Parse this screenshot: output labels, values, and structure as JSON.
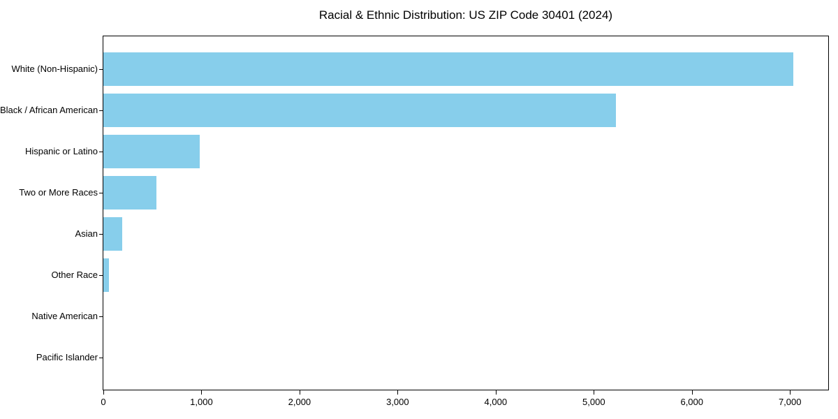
{
  "chart_data": {
    "type": "bar",
    "orientation": "horizontal",
    "title": "Racial & Ethnic Distribution: US ZIP Code 30401 (2024)",
    "categories": [
      "White (Non-Hispanic)",
      "Black / African American",
      "Hispanic or Latino",
      "Two or More Races",
      "Asian",
      "Other Race",
      "Native American",
      "Pacific Islander"
    ],
    "values": [
      7035,
      5225,
      985,
      540,
      190,
      55,
      0,
      0
    ],
    "xlabel": "",
    "ylabel": "",
    "xlim": [
      0,
      7390
    ],
    "x_ticks": [
      0,
      1000,
      2000,
      3000,
      4000,
      5000,
      6000,
      7000
    ],
    "x_tick_labels": [
      "0",
      "1,000",
      "2,000",
      "3,000",
      "4,000",
      "5,000",
      "6,000",
      "7,000"
    ],
    "bar_color": "#87CEEB",
    "axis_color": "#000000",
    "background_color": "#ffffff",
    "grid": false,
    "legend_position": "none"
  }
}
